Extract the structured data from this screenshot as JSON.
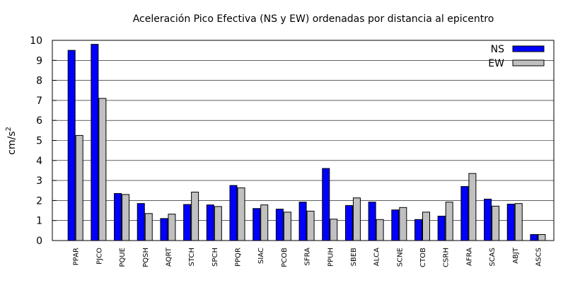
{
  "chart_data": {
    "type": "bar",
    "title": "Aceleración Pico Efectiva (NS y EW) ordenadas por distancia al epicentro",
    "xlabel": "",
    "ylabel": "cm/s",
    "ylabel_sup": "2",
    "ylim": [
      0,
      10
    ],
    "yticks": [
      "0",
      "1",
      "2",
      "3",
      "4",
      "5",
      "6",
      "7",
      "8",
      "9",
      "10"
    ],
    "grid": "horizontal",
    "legend_position": "top-right",
    "categories": [
      "PPAR",
      "PJCO",
      "PQUE",
      "PQSH",
      "AQRT",
      "STCH",
      "SPCH",
      "PPQR",
      "SIAC",
      "PCOB",
      "SFRA",
      "PPUH",
      "SBEB",
      "ALCA",
      "SCNE",
      "CTOB",
      "CSRH",
      "AFRA",
      "SCAS",
      "ABJT",
      "ASCS"
    ],
    "series": [
      {
        "name": "NS",
        "color": "#0000ff",
        "values": [
          9.5,
          9.8,
          2.35,
          1.85,
          1.1,
          1.8,
          1.78,
          2.75,
          1.6,
          1.57,
          1.92,
          3.6,
          1.75,
          1.92,
          1.53,
          1.05,
          1.22,
          2.7,
          2.07,
          1.82,
          0.3
        ]
      },
      {
        "name": "EW",
        "color": "#c0c0c0",
        "values": [
          5.25,
          7.1,
          2.3,
          1.35,
          1.32,
          2.42,
          1.7,
          2.63,
          1.78,
          1.42,
          1.47,
          1.07,
          2.13,
          1.05,
          1.65,
          1.42,
          1.92,
          3.35,
          1.72,
          1.85,
          0.3
        ]
      }
    ]
  }
}
